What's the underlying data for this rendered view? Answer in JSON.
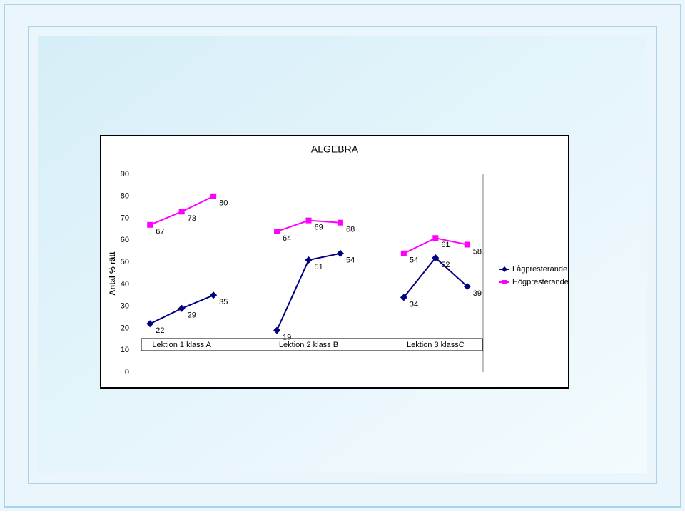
{
  "chart_data": {
    "type": "line",
    "title": "ALGEBRA",
    "y_label": "Antal % rätt",
    "categories": [
      null,
      "Lektion 1  klass A",
      null,
      null,
      null,
      "Lektion 2  klass B",
      null,
      null,
      null,
      "Lektion 3  klassC",
      null
    ],
    "series": [
      {
        "name": "Lågpresterande",
        "color": "#000080",
        "marker": "diamond",
        "values": [
          22,
          29,
          35,
          null,
          19,
          51,
          54,
          null,
          34,
          52,
          39
        ]
      },
      {
        "name": "Högpresterande",
        "color": "#ff00ff",
        "marker": "square",
        "values": [
          67,
          73,
          80,
          null,
          64,
          69,
          68,
          null,
          54,
          61,
          58
        ]
      }
    ],
    "ylim": [
      0,
      90
    ],
    "yticks": [
      0,
      10,
      20,
      30,
      40,
      50,
      60,
      70,
      80,
      90
    ],
    "grid": false,
    "legend": "right"
  }
}
